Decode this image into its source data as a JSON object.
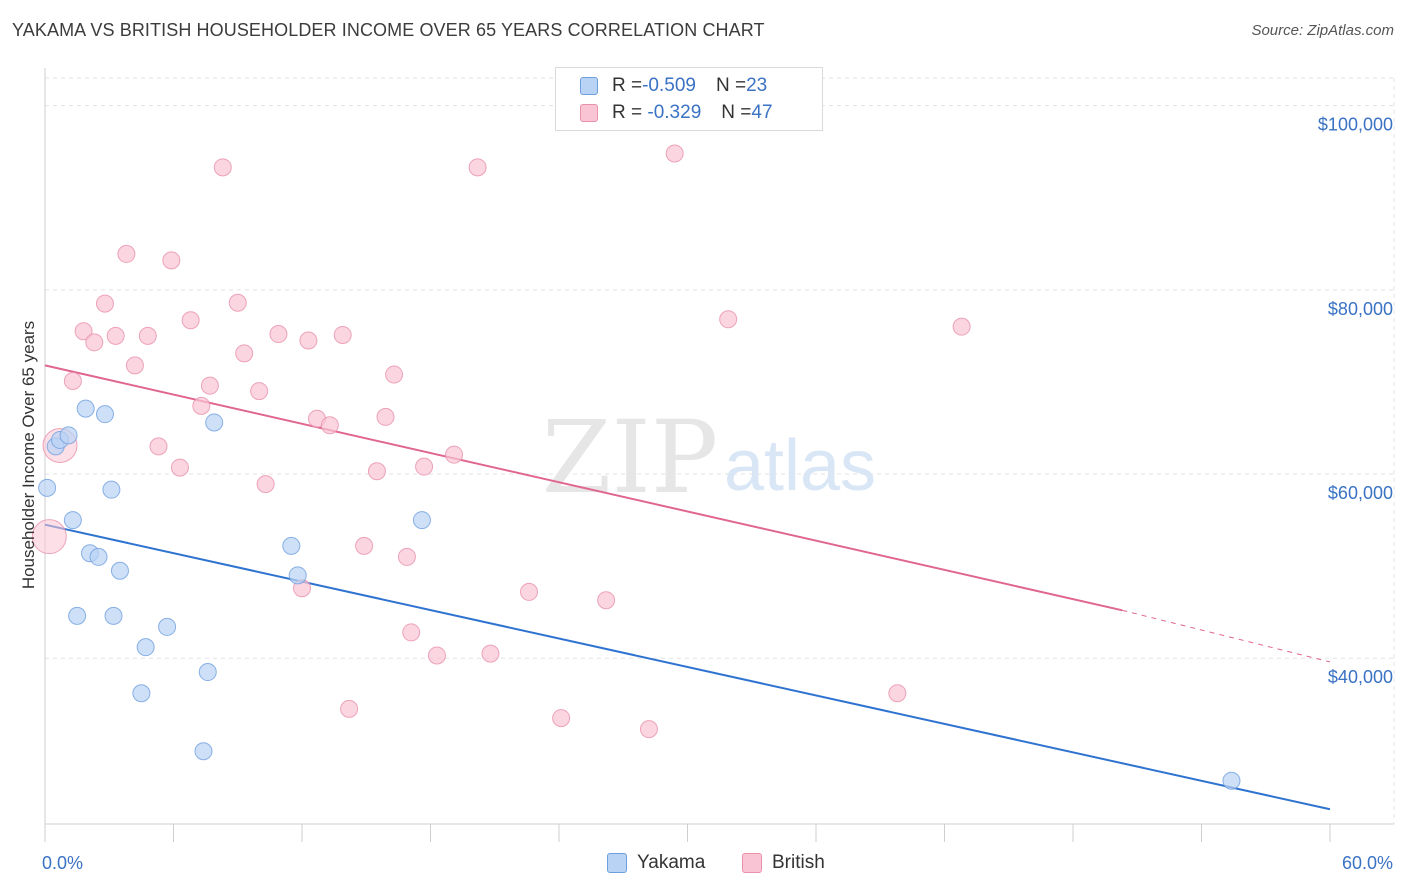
{
  "title": "YAKAMA VS BRITISH HOUSEHOLDER INCOME OVER 65 YEARS CORRELATION CHART",
  "source": "Source: ZipAtlas.com",
  "watermark": {
    "zip": "ZIP",
    "atlas": "atlas"
  },
  "legend": {
    "rows": [
      {
        "r_label": "R = ",
        "r_value": "-0.509",
        "n_label": "N = ",
        "n_value": "23"
      },
      {
        "r_label": "R = ",
        "r_value": " -0.329",
        "n_label": "N = ",
        "n_value": "47"
      }
    ]
  },
  "bottom_legend": {
    "yakama": "Yakama",
    "british": "British"
  },
  "colors": {
    "yakama_fill": "#b9d3f5",
    "yakama_stroke": "#6f9fdf",
    "yakama_line": "#2f73d1",
    "british_fill": "#f9c5d4",
    "british_stroke": "#e990ab",
    "british_line": "#e0668f",
    "tick_text": "#3a72c4",
    "grid": "#e3e3e3"
  },
  "chart_data": {
    "type": "scatter",
    "ylabel": "Householder Income Over 65 years",
    "xlim": [
      0,
      60
    ],
    "ylim": [
      22000,
      103000
    ],
    "x_tick_labels": [
      "0.0%",
      "60.0%"
    ],
    "y_ticks": [
      40000,
      60000,
      80000,
      100000
    ],
    "y_tick_labels": [
      "$40,000",
      "$60,000",
      "$80,000",
      "$100,000"
    ],
    "grid": true,
    "series": [
      {
        "name": "Yakama",
        "r": -0.509,
        "n": 23,
        "trend": {
          "x": [
            0,
            60
          ],
          "y": [
            54500,
            23600
          ]
        },
        "points": [
          {
            "x": 0.1,
            "y": 58500
          },
          {
            "x": 0.5,
            "y": 63000
          },
          {
            "x": 0.7,
            "y": 63700
          },
          {
            "x": 1.1,
            "y": 64200
          },
          {
            "x": 1.3,
            "y": 55000
          },
          {
            "x": 1.5,
            "y": 44600
          },
          {
            "x": 1.9,
            "y": 67100
          },
          {
            "x": 2.1,
            "y": 51400
          },
          {
            "x": 2.5,
            "y": 51000
          },
          {
            "x": 2.8,
            "y": 66500
          },
          {
            "x": 3.1,
            "y": 58300
          },
          {
            "x": 3.2,
            "y": 44600
          },
          {
            "x": 3.5,
            "y": 49500
          },
          {
            "x": 4.5,
            "y": 36200
          },
          {
            "x": 4.7,
            "y": 41200
          },
          {
            "x": 5.7,
            "y": 43400
          },
          {
            "x": 7.4,
            "y": 29900
          },
          {
            "x": 7.6,
            "y": 38500
          },
          {
            "x": 7.9,
            "y": 65600
          },
          {
            "x": 11.5,
            "y": 52200
          },
          {
            "x": 11.8,
            "y": 49000
          },
          {
            "x": 17.6,
            "y": 55000
          },
          {
            "x": 55.4,
            "y": 26700
          }
        ]
      },
      {
        "name": "British",
        "r": -0.329,
        "n": 47,
        "trend": {
          "x": [
            0,
            50.3
          ],
          "y": [
            71800,
            45200
          ]
        },
        "trend_dashed": {
          "x": [
            50.3,
            60
          ],
          "y": [
            45200,
            39600
          ]
        },
        "points": [
          {
            "x": 0.2,
            "y": 53200,
            "big": true
          },
          {
            "x": 0.7,
            "y": 63100,
            "big": true
          },
          {
            "x": 1.3,
            "y": 70100
          },
          {
            "x": 1.8,
            "y": 75500
          },
          {
            "x": 2.3,
            "y": 74300
          },
          {
            "x": 2.8,
            "y": 78500
          },
          {
            "x": 3.3,
            "y": 75000
          },
          {
            "x": 3.8,
            "y": 83900
          },
          {
            "x": 4.2,
            "y": 71800
          },
          {
            "x": 4.8,
            "y": 75000
          },
          {
            "x": 5.3,
            "y": 63000
          },
          {
            "x": 5.9,
            "y": 83200
          },
          {
            "x": 6.3,
            "y": 60700
          },
          {
            "x": 6.8,
            "y": 76700
          },
          {
            "x": 7.3,
            "y": 67400
          },
          {
            "x": 7.7,
            "y": 69600
          },
          {
            "x": 8.3,
            "y": 93300
          },
          {
            "x": 9.0,
            "y": 78600
          },
          {
            "x": 9.3,
            "y": 73100
          },
          {
            "x": 10.0,
            "y": 69000
          },
          {
            "x": 10.3,
            "y": 58900
          },
          {
            "x": 10.9,
            "y": 75200
          },
          {
            "x": 12.0,
            "y": 47600
          },
          {
            "x": 12.3,
            "y": 74500
          },
          {
            "x": 12.7,
            "y": 66000
          },
          {
            "x": 13.3,
            "y": 65300
          },
          {
            "x": 13.9,
            "y": 75100
          },
          {
            "x": 14.2,
            "y": 34500
          },
          {
            "x": 14.9,
            "y": 52200
          },
          {
            "x": 15.5,
            "y": 60300
          },
          {
            "x": 15.9,
            "y": 66200
          },
          {
            "x": 16.3,
            "y": 70800
          },
          {
            "x": 16.9,
            "y": 51000
          },
          {
            "x": 17.1,
            "y": 42800
          },
          {
            "x": 17.7,
            "y": 60800
          },
          {
            "x": 18.3,
            "y": 40300
          },
          {
            "x": 19.1,
            "y": 62100
          },
          {
            "x": 20.2,
            "y": 93300
          },
          {
            "x": 20.8,
            "y": 40500
          },
          {
            "x": 22.6,
            "y": 47200
          },
          {
            "x": 24.1,
            "y": 33500
          },
          {
            "x": 26.2,
            "y": 46300
          },
          {
            "x": 28.2,
            "y": 32300
          },
          {
            "x": 29.4,
            "y": 94800
          },
          {
            "x": 31.9,
            "y": 76800
          },
          {
            "x": 39.8,
            "y": 36200
          },
          {
            "x": 42.8,
            "y": 76000
          }
        ]
      }
    ]
  }
}
